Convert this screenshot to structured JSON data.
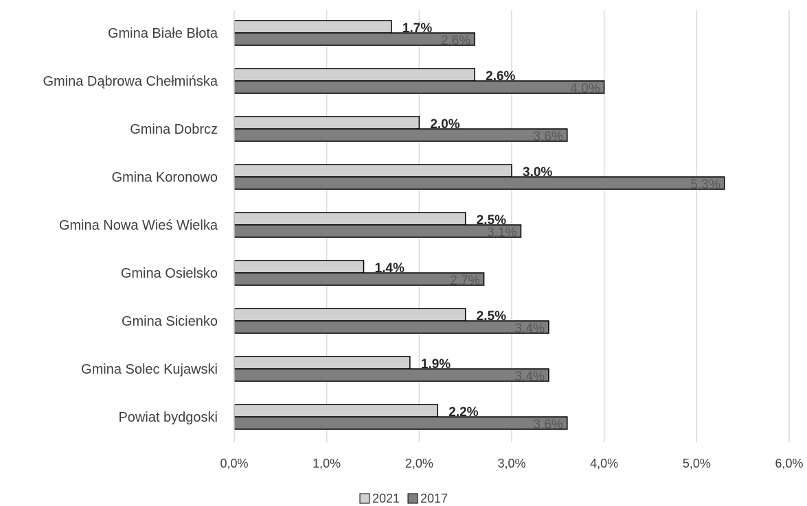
{
  "chart_data": {
    "type": "bar",
    "orientation": "horizontal",
    "categories": [
      "Gmina Białe Błota",
      "Gmina Dąbrowa Chełmińska",
      "Gmina Dobrcz",
      "Gmina Koronowo",
      "Gmina Nowa Wieś Wielka",
      "Gmina Osielsko",
      "Gmina Sicienko",
      "Gmina Solec Kujawski",
      "Powiat bydgoski"
    ],
    "series": [
      {
        "name": "2021",
        "values": [
          1.7,
          2.6,
          2.0,
          3.0,
          2.5,
          1.4,
          2.5,
          1.9,
          2.2
        ],
        "labels": [
          "1.7%",
          "2.6%",
          "2.0%",
          "3.0%",
          "2.5%",
          "1.4%",
          "2.5%",
          "1.9%",
          "2.2%"
        ],
        "color": "#d0d0d0"
      },
      {
        "name": "2017",
        "values": [
          2.6,
          4.0,
          3.6,
          5.3,
          3.1,
          2.7,
          3.4,
          3.4,
          3.6
        ],
        "labels": [
          "2,6%",
          "4,0%",
          "3,6%",
          "5,3%",
          "3,1%",
          "2,7%",
          "3,4%",
          "3,4%",
          "3,6%"
        ],
        "color": "#7f7f7f"
      }
    ],
    "xlim": [
      0,
      6
    ],
    "xticks": [
      "0,0%",
      "1,0%",
      "2,0%",
      "3,0%",
      "4,0%",
      "5,0%",
      "6,0%"
    ],
    "title": "",
    "xlabel": "",
    "ylabel": "",
    "grid": true,
    "legend_position": "bottom"
  }
}
